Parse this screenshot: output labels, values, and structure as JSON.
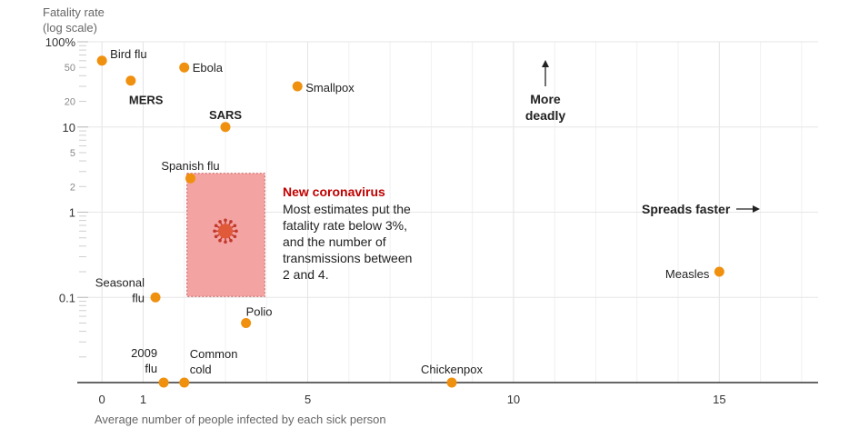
{
  "chart_data": {
    "type": "scatter",
    "y_scale": "log",
    "ylabel_lines": [
      "Fatality rate",
      "(log scale)"
    ],
    "xlabel": "Average number of people infected by each sick person",
    "xlim": [
      -0.6,
      17.4
    ],
    "ylim": [
      0.01,
      100
    ],
    "x_ticks": [
      0,
      1,
      5,
      10,
      15
    ],
    "x_tick_labels": [
      "0",
      "1",
      "5",
      "10",
      "15"
    ],
    "y_ticks_major": [
      100,
      10,
      1,
      0.1
    ],
    "y_tick_major_labels": [
      "100%",
      "10",
      "1",
      "0.1"
    ],
    "y_ticks_minor": [
      50,
      20,
      5,
      2
    ],
    "y_tick_minor_labels": [
      "50",
      "20",
      "5",
      "2"
    ],
    "grid": true,
    "points": [
      {
        "label": "Bird flu",
        "x": 0,
        "y": 60,
        "bold": false
      },
      {
        "label": "Ebola",
        "x": 2,
        "y": 50,
        "bold": false
      },
      {
        "label": "MERS",
        "x": 0.7,
        "y": 35,
        "bold": true
      },
      {
        "label": "Smallpox",
        "x": 4.75,
        "y": 30,
        "bold": false
      },
      {
        "label": "SARS",
        "x": 3,
        "y": 10,
        "bold": true
      },
      {
        "label": "Spanish flu",
        "x": 2.15,
        "y": 2.5,
        "bold": false
      },
      {
        "label": "Seasonal flu",
        "x": 1.3,
        "y": 0.1,
        "bold": false
      },
      {
        "label": "Polio",
        "x": 3.5,
        "y": 0.05,
        "bold": false
      },
      {
        "label": "2009 flu",
        "x": 1.5,
        "y": 0.01,
        "bold": false
      },
      {
        "label": "Common cold",
        "x": 2,
        "y": 0.01,
        "bold": false
      },
      {
        "label": "Chickenpox",
        "x": 8.5,
        "y": 0.01,
        "bold": false
      },
      {
        "label": "Measles",
        "x": 15,
        "y": 0.2,
        "bold": false
      }
    ],
    "highlight_region": {
      "label": "New coronavirus",
      "x_range": [
        2,
        4
      ],
      "y_range": [
        0.1,
        3
      ],
      "center": {
        "x": 3,
        "y": 0.6
      }
    },
    "annotation": {
      "title": "New coronavirus",
      "lines": [
        "Most estimates put the",
        "fatality rate below 3%,",
        "and the number of",
        "transmissions between",
        "2 and 4."
      ]
    },
    "direction_labels": {
      "up_lines": [
        "More",
        "deadly"
      ],
      "right": "Spreads faster"
    }
  }
}
